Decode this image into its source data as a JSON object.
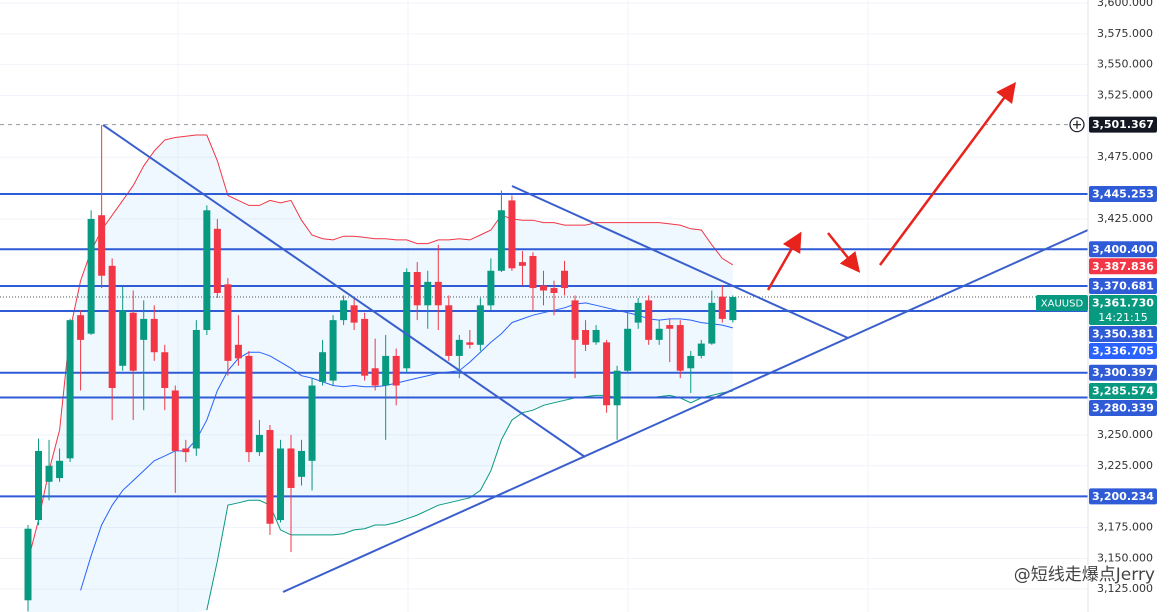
{
  "chart_data": {
    "type": "candlestick",
    "symbol": "XAUUSD",
    "countdown": "14:21:15",
    "watermark": "@短线走爆点Jerry",
    "ylim": [
      3106.5,
      3602.4
    ],
    "yticks": [
      {
        "value": 3600,
        "label": "3,600.000"
      },
      {
        "value": 3575,
        "label": "3,575.000"
      },
      {
        "value": 3550,
        "label": "3,550.000"
      },
      {
        "value": 3525,
        "label": "3,525.000"
      },
      {
        "value": 3475,
        "label": "3,475.000"
      },
      {
        "value": 3425,
        "label": "3,425.000"
      },
      {
        "value": 3250,
        "label": "3,250.000"
      },
      {
        "value": 3225,
        "label": "3,225.000"
      },
      {
        "value": 3175,
        "label": "3,175.000"
      },
      {
        "value": 3150,
        "label": "3,150.000"
      },
      {
        "value": 3125,
        "label": "3,125.000"
      }
    ],
    "grid": true,
    "up_color": "#089981",
    "down_color": "#f23645",
    "open": [
      3116,
      3181,
      3212,
      3215,
      3231,
      3347,
      3332,
      3428,
      3387,
      3306,
      3349,
      3327,
      3344,
      3317,
      3286,
      3239,
      3239,
      3335,
      3417,
      3372,
      3323,
      3314,
      3236,
      3254,
      3181,
      3239,
      3216,
      3229,
      3293,
      3294,
      3343,
      3355,
      3344,
      3304,
      3290,
      3314,
      3304,
      3382,
      3355,
      3374,
      3355,
      3314,
      3325,
      3323,
      3355,
      3383,
      3440,
      3390,
      3395,
      3371,
      3369,
      3383,
      3359,
      3335,
      3325,
      3325,
      3274,
      3302,
      3341,
      3359,
      3327,
      3339,
      3339,
      3304,
      3314,
      3324,
      3362,
      3343
    ],
    "high": [
      3177,
      3247,
      3246,
      3239,
      3344,
      3351,
      3432,
      3501,
      3393,
      3370,
      3367,
      3359,
      3355,
      3323,
      3290,
      3246,
      3343,
      3436,
      3425,
      3377,
      3347,
      3318,
      3262,
      3258,
      3246,
      3250,
      3246,
      3296,
      3327,
      3347,
      3363,
      3361,
      3349,
      3328,
      3331,
      3320,
      3385,
      3390,
      3383,
      3404,
      3363,
      3331,
      3335,
      3361,
      3393,
      3448,
      3444,
      3399,
      3398,
      3383,
      3375,
      3391,
      3363,
      3343,
      3339,
      3327,
      3306,
      3351,
      3361,
      3363,
      3343,
      3344,
      3343,
      3318,
      3327,
      3367,
      3371,
      3363
    ],
    "low": [
      3107,
      3177,
      3197,
      3212,
      3228,
      3286,
      3331,
      3369,
      3262,
      3302,
      3262,
      3270,
      3310,
      3270,
      3203,
      3228,
      3233,
      3331,
      3361,
      3298,
      3306,
      3228,
      3233,
      3169,
      3179,
      3155,
      3209,
      3205,
      3290,
      3290,
      3339,
      3335,
      3294,
      3286,
      3246,
      3274,
      3301,
      3343,
      3336,
      3335,
      3310,
      3296,
      3320,
      3318,
      3351,
      3382,
      3383,
      3371,
      3351,
      3355,
      3347,
      3363,
      3296,
      3318,
      3323,
      3268,
      3246,
      3301,
      3336,
      3323,
      3323,
      3309,
      3296,
      3284,
      3312,
      3323,
      3341,
      3341
    ],
    "close": [
      3174,
      3237,
      3225,
      3229,
      3343,
      3327,
      3425,
      3379,
      3288,
      3351,
      3302,
      3344,
      3317,
      3288,
      3237,
      3236,
      3335,
      3432,
      3365,
      3310,
      3312,
      3236,
      3250,
      3178,
      3239,
      3207,
      3237,
      3290,
      3317,
      3343,
      3359,
      3341,
      3298,
      3290,
      3314,
      3290,
      3382,
      3355,
      3374,
      3355,
      3314,
      3327,
      3323,
      3355,
      3383,
      3432,
      3385,
      3387,
      3369,
      3367,
      3365,
      3369,
      3327,
      3323,
      3335,
      3274,
      3302,
      3336,
      3357,
      3327,
      3336,
      3336,
      3302,
      3314,
      3324,
      3357,
      3344,
      3361.73
    ],
    "bollinger": {
      "upper_color": "#f23645",
      "middle_color": "#2962ff",
      "lower_color": "#089981",
      "upper": [
        3148,
        3181,
        3221,
        3254,
        3335,
        3375,
        3399,
        3416,
        3428,
        3440,
        3452,
        3468,
        3480,
        3489,
        3491,
        3492,
        3493,
        3493,
        3472,
        3444,
        3440,
        3436,
        3436,
        3440,
        3438,
        3440,
        3424,
        3412,
        3409,
        3408,
        3411,
        3411,
        3410,
        3409,
        3409,
        3408,
        3408,
        3405,
        3405,
        3408,
        3408,
        3409,
        3408,
        3412,
        3416,
        3428,
        3425,
        3424,
        3424,
        3422,
        3422,
        3420,
        3420,
        3420,
        3422,
        3422,
        3422,
        3422,
        3422,
        3422,
        3422,
        3421,
        3420,
        3417,
        3416,
        3404,
        3393,
        3387.836
      ],
      "middle": [
        null,
        null,
        null,
        null,
        null,
        3124,
        3152,
        3177,
        3193,
        3205,
        3213,
        3221,
        3229,
        3233,
        3237,
        3237,
        3246,
        3262,
        3286,
        3302,
        3312,
        3317,
        3317,
        3314,
        3309,
        3304,
        3298,
        3296,
        3293,
        3290,
        3289,
        3290,
        3289,
        3289,
        3290,
        3292,
        3294,
        3296,
        3298,
        3300,
        3301,
        3302,
        3309,
        3317,
        3325,
        3332,
        3341,
        3344,
        3347,
        3349,
        3351,
        3353,
        3356,
        3357,
        3355,
        3353,
        3351,
        3349,
        3347,
        3344,
        3343,
        3344,
        3344,
        3343,
        3341,
        3340,
        3339,
        3336.705
      ],
      "lower": [
        null,
        null,
        null,
        null,
        null,
        null,
        null,
        null,
        null,
        null,
        null,
        null,
        null,
        null,
        null,
        null,
        null,
        3108,
        3148,
        3193,
        3195,
        3197,
        3197,
        3193,
        3173,
        3169,
        3169,
        3169,
        3169,
        3169,
        3170,
        3173,
        3174,
        3177,
        3177,
        3179,
        3182,
        3185,
        3189,
        3193,
        3195,
        3197,
        3199,
        3205,
        3221,
        3246,
        3262,
        3268,
        3270,
        3274,
        3276,
        3278,
        3280,
        3281,
        3282,
        3282,
        3280,
        3280,
        3280,
        3280,
        3281,
        3282,
        3280,
        3276,
        3280,
        3282,
        3284,
        3285.574
      ]
    },
    "level_color": "#2f5bd6",
    "levels": [
      {
        "value": 3445.253,
        "label": "3,445.253"
      },
      {
        "value": 3400.4,
        "label": "3,400.400"
      },
      {
        "value": 3370.681,
        "label": "3,370.681"
      },
      {
        "value": 3350.381,
        "label": "3,350.381"
      },
      {
        "value": 3300.397,
        "label": "3,300.397"
      },
      {
        "value": 3280.339,
        "label": "3,280.339"
      },
      {
        "value": 3200.234,
        "label": "3,200.234"
      }
    ],
    "band_labels": [
      {
        "value": 3387.836,
        "label": "3,387.836",
        "color": "#f23645"
      },
      {
        "value": 3336.705,
        "label": "3,336.705",
        "color": "#2962ff"
      },
      {
        "value": 3285.574,
        "label": "3,285.574",
        "color": "#089981"
      }
    ],
    "current_price": {
      "value": 3361.73,
      "label": "3,361.730",
      "color": "#089981"
    },
    "high_line": {
      "value": 3501.367,
      "label": "3,501.367",
      "color": "#131722"
    }
  }
}
